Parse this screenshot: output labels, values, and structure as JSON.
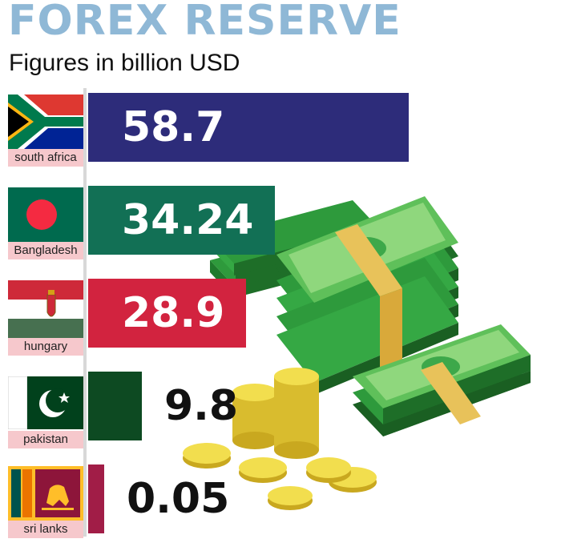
{
  "header": {
    "title": "FOREX RESERVE",
    "subtitle": "Figures in billion USD"
  },
  "colors": {
    "title": "#8fb8d6",
    "south_africa": "#2d2c7a",
    "bangladesh": "#127055",
    "hungary": "#d2233f",
    "pakistan": "#0d4a22",
    "sri_lanka": "#a11d47"
  },
  "chart_data": {
    "type": "bar",
    "orientation": "horizontal",
    "title": "FOREX RESERVE",
    "subtitle": "Figures in billion USD",
    "categories": [
      "south africa",
      "Bangladesh",
      "hungary",
      "pakistan",
      "sri lanks"
    ],
    "values": [
      58.7,
      34.24,
      28.9,
      9.8,
      0.05
    ],
    "value_labels": [
      "58.7",
      "34.24",
      "28.9",
      "9.8",
      "0.05"
    ],
    "bar_colors": [
      "#2d2c7a",
      "#127055",
      "#d2233f",
      "#0d4a22",
      "#a11d47"
    ],
    "xlim": [
      0,
      58.7
    ],
    "grid": false,
    "legend": "none"
  }
}
